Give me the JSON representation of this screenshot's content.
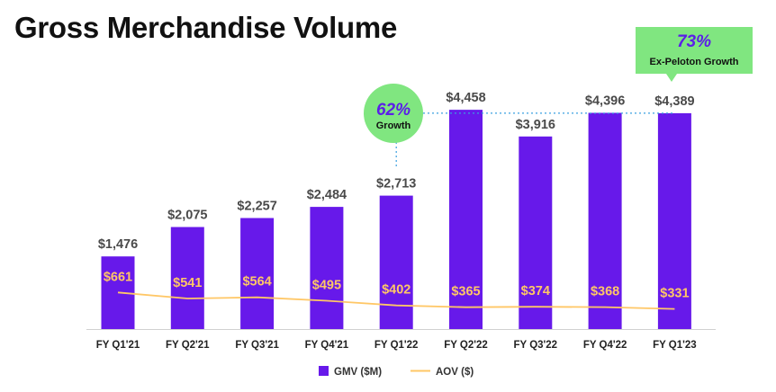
{
  "chart_data": {
    "type": "bar",
    "title": "Gross Merchandise Volume",
    "categories": [
      "FY Q1'21",
      "FY Q2'21",
      "FY Q3'21",
      "FY Q4'21",
      "FY Q1'22",
      "FY Q2'22",
      "FY Q3'22",
      "FY Q4'22",
      "FY Q1'23"
    ],
    "series": [
      {
        "name": "GMV ($M)",
        "type": "bar",
        "color": "#6719ea",
        "values": [
          1476,
          2075,
          2257,
          2484,
          2713,
          4458,
          3916,
          4396,
          4389
        ],
        "labels": [
          "$1,476",
          "$2,075",
          "$2,257",
          "$2,484",
          "$2,713",
          "$4,458",
          "$3,916",
          "$4,396",
          "$4,389"
        ]
      },
      {
        "name": "AOV ($)",
        "type": "line",
        "color": "#ffc766",
        "values": [
          661,
          541,
          564,
          495,
          402,
          365,
          374,
          368,
          331
        ],
        "labels": [
          "$661",
          "$541",
          "$564",
          "$495",
          "$402",
          "$365",
          "$374",
          "$368",
          "$331"
        ]
      }
    ],
    "annotations": [
      {
        "pct": "62%",
        "sub": "Growth",
        "shape": "circle",
        "color": "#80e680"
      },
      {
        "pct": "73%",
        "sub": "Ex-Peloton Growth",
        "shape": "callout",
        "color": "#80e680"
      }
    ],
    "legend": "bottom-center"
  }
}
